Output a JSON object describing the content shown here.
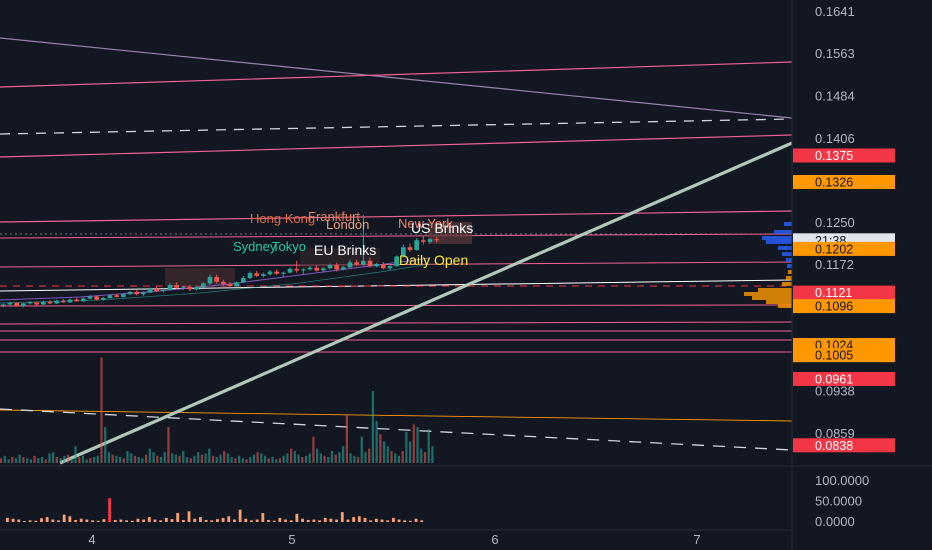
{
  "chart_data": {
    "type": "candlestick",
    "price_scale": {
      "ticks": [
        "0.1641",
        "0.1563",
        "0.1484",
        "0.1406",
        "0.1250",
        "0.1172",
        "0.0938",
        "0.0859"
      ],
      "range": [
        0.08,
        0.168
      ]
    },
    "indicator_scale": {
      "ticks": [
        "100.0000",
        "50.0000",
        "0.0000"
      ],
      "range": [
        0,
        110
      ]
    },
    "x_axis": {
      "ticks": [
        "4",
        "5",
        "6",
        "7"
      ]
    },
    "price_badges": [
      {
        "label": "0.1375",
        "value": 0.1375,
        "color": "#f23645",
        "text_color": "#ffffff"
      },
      {
        "label": "0.1326",
        "value": 0.1326,
        "color": "#ff9800",
        "text_color": "#131722"
      },
      {
        "label": "21:38",
        "value": 0.1218,
        "color": "#e0e3eb",
        "text_color": "#131722"
      },
      {
        "label": "0.1202",
        "value": 0.1202,
        "color": "#ff9800",
        "text_color": "#131722"
      },
      {
        "label": "0.1121",
        "value": 0.1121,
        "color": "#f23645",
        "text_color": "#ffffff"
      },
      {
        "label": "0.1096",
        "value": 0.1096,
        "color": "#ff9800",
        "text_color": "#131722"
      },
      {
        "label": "0.1024",
        "value": 0.1024,
        "color": "#ff9800",
        "text_color": "#131722"
      },
      {
        "label": "0.1005",
        "value": 0.1005,
        "color": "#ff9800",
        "text_color": "#131722"
      },
      {
        "label": "0.0961",
        "value": 0.0961,
        "color": "#f23645",
        "text_color": "#ffffff"
      },
      {
        "label": "0.0838",
        "value": 0.0838,
        "color": "#f23645",
        "text_color": "#ffffff"
      }
    ],
    "session_labels": [
      {
        "text": "Hong Kong",
        "color": "#e06a3b"
      },
      {
        "text": "Frankfurt",
        "color": "#e8845a"
      },
      {
        "text": "London",
        "color": "#f0a07a"
      },
      {
        "text": "New York",
        "color": "#f27c6a"
      },
      {
        "text": "US Brinks",
        "color": "#ffffff"
      },
      {
        "text": "Sydney",
        "color": "#26c6a6"
      },
      {
        "text": "Tokyo",
        "color": "#26c6a6"
      },
      {
        "text": "EU Brinks",
        "color": "#ffffff"
      },
      {
        "text": "Daily Open",
        "color": "#ffeb3b"
      }
    ],
    "horizontal_levels": [
      0.16,
      0.139,
      0.1265,
      0.1233,
      0.1175,
      0.1143,
      0.1107,
      0.1065,
      0.105,
      0.104,
      0.1017,
      0.088,
      0.0873
    ],
    "candles": [
      [
        0.1097,
        0.1101,
        0.1094,
        0.1099
      ],
      [
        0.1099,
        0.1104,
        0.1097,
        0.1102
      ],
      [
        0.1102,
        0.1103,
        0.1095,
        0.1096
      ],
      [
        0.1096,
        0.1102,
        0.1094,
        0.1101
      ],
      [
        0.1101,
        0.1105,
        0.1099,
        0.1103
      ],
      [
        0.1103,
        0.1104,
        0.1097,
        0.1099
      ],
      [
        0.1099,
        0.1106,
        0.1098,
        0.1104
      ],
      [
        0.1104,
        0.1107,
        0.11,
        0.1101
      ],
      [
        0.1101,
        0.1108,
        0.11,
        0.1106
      ],
      [
        0.1106,
        0.1109,
        0.1102,
        0.1103
      ],
      [
        0.1103,
        0.111,
        0.1102,
        0.1108
      ],
      [
        0.1108,
        0.1111,
        0.1104,
        0.1105
      ],
      [
        0.1105,
        0.1112,
        0.1104,
        0.111
      ],
      [
        0.111,
        0.1116,
        0.1108,
        0.1114
      ],
      [
        0.1114,
        0.1115,
        0.1106,
        0.1108
      ],
      [
        0.1108,
        0.1113,
        0.1106,
        0.1111
      ],
      [
        0.1111,
        0.1118,
        0.111,
        0.1116
      ],
      [
        0.1116,
        0.1119,
        0.1112,
        0.1113
      ],
      [
        0.1113,
        0.112,
        0.1112,
        0.1118
      ],
      [
        0.1118,
        0.1124,
        0.1117,
        0.1122
      ],
      [
        0.1122,
        0.1126,
        0.1116,
        0.1118
      ],
      [
        0.1118,
        0.1123,
        0.1115,
        0.1121
      ],
      [
        0.1121,
        0.113,
        0.112,
        0.1128
      ],
      [
        0.1128,
        0.1132,
        0.1122,
        0.1124
      ],
      [
        0.1124,
        0.1128,
        0.1121,
        0.1126
      ],
      [
        0.1126,
        0.1138,
        0.1125,
        0.1135
      ],
      [
        0.1135,
        0.114,
        0.1128,
        0.113
      ],
      [
        0.113,
        0.1134,
        0.1126,
        0.1132
      ],
      [
        0.1132,
        0.1135,
        0.1124,
        0.1127
      ],
      [
        0.1127,
        0.1133,
        0.1125,
        0.1131
      ],
      [
        0.1131,
        0.114,
        0.113,
        0.1138
      ],
      [
        0.1138,
        0.1155,
        0.1136,
        0.115
      ],
      [
        0.115,
        0.1154,
        0.1138,
        0.1141
      ],
      [
        0.1141,
        0.1145,
        0.1134,
        0.1137
      ],
      [
        0.1137,
        0.114,
        0.113,
        0.1133
      ],
      [
        0.1133,
        0.1142,
        0.1132,
        0.114
      ],
      [
        0.114,
        0.1152,
        0.1139,
        0.1148
      ],
      [
        0.1148,
        0.116,
        0.1146,
        0.1157
      ],
      [
        0.1157,
        0.1161,
        0.115,
        0.1152
      ],
      [
        0.1152,
        0.1158,
        0.1149,
        0.1155
      ],
      [
        0.1155,
        0.1163,
        0.1153,
        0.116
      ],
      [
        0.116,
        0.1164,
        0.1154,
        0.1156
      ],
      [
        0.1156,
        0.116,
        0.115,
        0.1158
      ],
      [
        0.1158,
        0.1168,
        0.1157,
        0.1165
      ],
      [
        0.1165,
        0.118,
        0.1158,
        0.1162
      ],
      [
        0.1162,
        0.1166,
        0.1155,
        0.1164
      ],
      [
        0.1164,
        0.117,
        0.1162,
        0.1167
      ],
      [
        0.1167,
        0.1171,
        0.116,
        0.1162
      ],
      [
        0.1162,
        0.1168,
        0.116,
        0.1166
      ],
      [
        0.1166,
        0.1175,
        0.1164,
        0.1172
      ],
      [
        0.1172,
        0.1176,
        0.116,
        0.1164
      ],
      [
        0.1164,
        0.117,
        0.1162,
        0.1168
      ],
      [
        0.1168,
        0.1182,
        0.1166,
        0.1177
      ],
      [
        0.1177,
        0.1182,
        0.117,
        0.1173
      ],
      [
        0.1173,
        0.1265,
        0.1171,
        0.118
      ],
      [
        0.118,
        0.1186,
        0.1168,
        0.117
      ],
      [
        0.117,
        0.1176,
        0.1168,
        0.1174
      ],
      [
        0.1174,
        0.1178,
        0.1164,
        0.1166
      ],
      [
        0.1166,
        0.1172,
        0.1163,
        0.117
      ],
      [
        0.117,
        0.119,
        0.1169,
        0.1188
      ],
      [
        0.1188,
        0.121,
        0.1186,
        0.1205
      ],
      [
        0.1205,
        0.1212,
        0.1196,
        0.12
      ],
      [
        0.12,
        0.1222,
        0.1199,
        0.1218
      ],
      [
        0.1218,
        0.1225,
        0.121,
        0.1215
      ],
      [
        0.1215,
        0.1222,
        0.1212,
        0.122
      ],
      [
        0.122,
        0.1224,
        0.1214,
        0.1218
      ]
    ],
    "volume": [
      4,
      6,
      3,
      5,
      4,
      7,
      5,
      4,
      3,
      6,
      4,
      5,
      3,
      8,
      9,
      5,
      4,
      6,
      7,
      4,
      14,
      5,
      6,
      3,
      4,
      5,
      6,
      88,
      30,
      9,
      7,
      6,
      5,
      4,
      10,
      8,
      6,
      5,
      4,
      7,
      12,
      9,
      6,
      5,
      9,
      30,
      8,
      7,
      6,
      10,
      5,
      4,
      6,
      9,
      7,
      8,
      12,
      6,
      5,
      7,
      10,
      8,
      5,
      4,
      6,
      4,
      3,
      5,
      7,
      9,
      8,
      6,
      4,
      5,
      3,
      4,
      6,
      8,
      12,
      10,
      7,
      5,
      6,
      8,
      22,
      12,
      8,
      6,
      5,
      10,
      7,
      9,
      14,
      40,
      8,
      6,
      5,
      22,
      9,
      12,
      60,
      35,
      24,
      18,
      14,
      10,
      8,
      6,
      10,
      26,
      18,
      32,
      30,
      12,
      9,
      28,
      14
    ],
    "rsi": [
      10,
      8,
      6,
      2,
      4,
      3,
      9,
      12,
      6,
      4,
      18,
      14,
      5,
      8,
      6,
      4,
      3,
      7,
      58,
      5,
      6,
      4,
      3,
      8,
      6,
      12,
      6,
      4,
      10,
      7,
      22,
      5,
      26,
      8,
      12,
      5,
      4,
      7,
      10,
      14,
      6,
      30,
      8,
      4,
      6,
      22,
      5,
      3,
      10,
      6,
      4,
      20,
      8,
      5,
      6,
      4,
      10,
      8,
      6,
      24,
      6,
      12,
      14,
      10,
      4,
      8,
      6,
      4,
      10,
      6,
      4,
      3,
      8,
      4
    ]
  }
}
